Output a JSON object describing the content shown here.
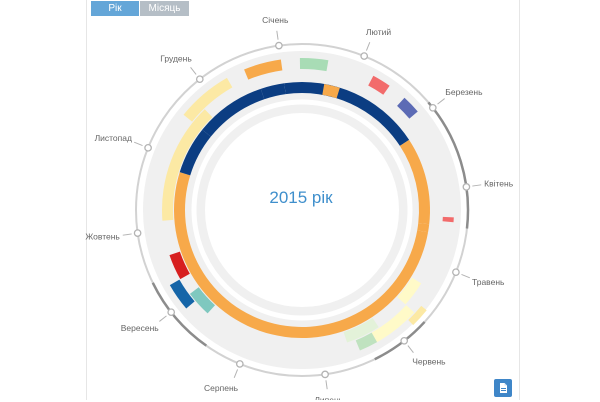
{
  "tabs": {
    "year_label": "Рік",
    "month_label": "Місяць",
    "active": "year"
  },
  "center": {
    "label": "2015 рік"
  },
  "months": [
    "Січень",
    "Лютий",
    "Березень",
    "Квітень",
    "Травень",
    "Червень",
    "Липень",
    "Серпень",
    "Вересень",
    "Жовтень",
    "Листопад",
    "Грудень"
  ],
  "export_button": {
    "icon": "document-export-icon"
  },
  "colors": {
    "accent": "#3f8fcc",
    "ring_bg": "#f0f0f0",
    "dial": "#b3b3b3",
    "tab_active": "#64a6d8",
    "tab_inactive": "#b5bec6"
  },
  "chart_data": {
    "type": "radial-timeline",
    "year": 2015,
    "arcs": [
      {
        "start": 0.0,
        "end": 0.18,
        "track": 1,
        "color": "#0b3d82"
      },
      {
        "start": 0.18,
        "end": 0.29,
        "track": 1,
        "color": "#f7a94a"
      },
      {
        "start": 0.29,
        "end": 0.3,
        "track": 1,
        "color": "#f7a94a"
      },
      {
        "start": 0.3,
        "end": 0.82,
        "track": 1,
        "color": "#f7a94a"
      },
      {
        "start": 0.82,
        "end": 0.88,
        "track": 1,
        "color": "#0b3d82"
      },
      {
        "start": 0.88,
        "end": 0.97,
        "track": 1,
        "color": "#0b3d82"
      },
      {
        "start": 0.97,
        "end": 1.0,
        "track": 1,
        "color": "#0b3d82"
      },
      {
        "start": 0.05,
        "end": 0.07,
        "track": 1,
        "color": "#f7a94a"
      },
      {
        "start": 0.43,
        "end": 0.47,
        "track": 2,
        "color": "#e3f2d9"
      },
      {
        "start": 0.36,
        "end": 0.39,
        "track": 2,
        "color": "#fffac8"
      },
      {
        "start": 0.39,
        "end": 0.44,
        "track": 3,
        "color": "#fffac8"
      },
      {
        "start": 0.44,
        "end": 0.46,
        "track": 3,
        "color": "#bfe2bf"
      },
      {
        "start": 0.38,
        "end": 0.4,
        "track": 4,
        "color": "#fce9a4"
      },
      {
        "start": 0.64,
        "end": 0.67,
        "track": 2,
        "color": "#7fc8bf"
      },
      {
        "start": 0.66,
        "end": 0.69,
        "track": 3,
        "color": "#1565a8"
      },
      {
        "start": 0.69,
        "end": 0.72,
        "track": 2,
        "color": "#d71f1f"
      },
      {
        "start": 0.76,
        "end": 0.9,
        "track": 2,
        "color": "#fce9a4"
      },
      {
        "start": 0.88,
        "end": 0.94,
        "track": 3,
        "color": "#fce9a4"
      },
      {
        "start": 0.96,
        "end": 1.0,
        "track": 3,
        "color": "#f7a94a"
      },
      {
        "start": 0.02,
        "end": 0.05,
        "track": 3,
        "color": "#a8dcb5"
      },
      {
        "start": 0.1,
        "end": 0.12,
        "track": 3,
        "color": "#f26b6b"
      },
      {
        "start": 0.14,
        "end": 0.16,
        "track": 3,
        "color": "#5c6bb5"
      },
      {
        "start": 0.28,
        "end": 0.285,
        "track": 3,
        "color": "#f26b6b"
      }
    ],
    "dial_highlights": [
      {
        "start": 0.16,
        "end": 0.29
      },
      {
        "start": 0.39,
        "end": 0.45
      },
      {
        "start": 0.62,
        "end": 0.7
      }
    ]
  }
}
